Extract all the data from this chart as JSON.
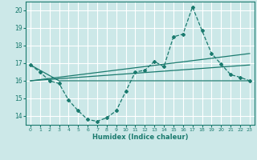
{
  "xlabel": "Humidex (Indice chaleur)",
  "ylabel": "",
  "xlim": [
    -0.5,
    23.5
  ],
  "ylim": [
    13.5,
    20.5
  ],
  "yticks": [
    14,
    15,
    16,
    17,
    18,
    19,
    20
  ],
  "xticks": [
    0,
    1,
    2,
    3,
    4,
    5,
    6,
    7,
    8,
    9,
    10,
    11,
    12,
    13,
    14,
    15,
    16,
    17,
    18,
    19,
    20,
    21,
    22,
    23
  ],
  "bg_color": "#cce8e8",
  "grid_color": "#aad4d4",
  "line_color": "#1a7a6e",
  "series1_x": [
    0,
    1,
    2,
    3,
    4,
    5,
    6,
    7,
    8,
    9,
    10,
    11,
    12,
    13,
    14,
    15,
    16,
    17,
    18,
    19,
    20,
    21,
    22,
    23
  ],
  "series1_y": [
    16.9,
    16.5,
    16.0,
    15.85,
    14.9,
    14.3,
    13.8,
    13.7,
    13.9,
    14.3,
    15.4,
    16.5,
    16.6,
    17.1,
    16.8,
    18.5,
    18.65,
    20.2,
    18.85,
    17.55,
    16.95,
    16.35,
    16.2,
    16.0
  ],
  "series2_x": [
    0,
    3,
    23
  ],
  "series2_y": [
    16.9,
    16.0,
    16.0
  ],
  "series3_x": [
    0,
    23
  ],
  "series3_y": [
    16.0,
    17.55
  ],
  "series4_x": [
    0,
    23
  ],
  "series4_y": [
    16.0,
    16.9
  ]
}
